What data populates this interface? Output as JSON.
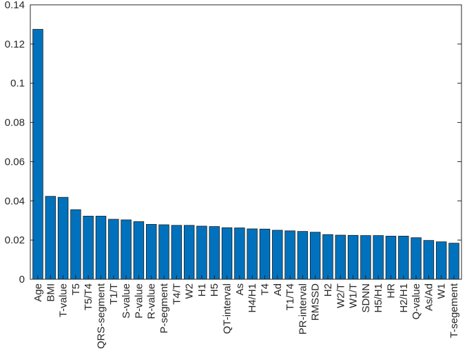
{
  "chart_data": {
    "type": "bar",
    "title": "",
    "xlabel": "",
    "ylabel": "",
    "ylim": [
      0,
      0.14
    ],
    "yticks": [
      0,
      0.02,
      0.04,
      0.06,
      0.08,
      0.1,
      0.12,
      0.14
    ],
    "ytick_labels": [
      "0",
      "0.02",
      "0.04",
      "0.06",
      "0.08",
      "0.1",
      "0.12",
      "0.14"
    ],
    "grid": false,
    "bar_color": "#0072BD",
    "categories": [
      "Age",
      "BMI",
      "T-value",
      "T5",
      "T5/T4",
      "QRS-segment",
      "T1/T",
      "S-value",
      "P-value",
      "R-value",
      "P-segment",
      "T4/T",
      "W2",
      "H1",
      "H5",
      "QT-interval",
      "As",
      "H4/H1",
      "T4",
      "Ad",
      "T1/T4",
      "PR-interval",
      "RMSSD",
      "H2",
      "W2/T",
      "W1/T",
      "SDNN",
      "H5/H1",
      "HR",
      "H2/H1",
      "Q-value",
      "As/Ad",
      "W1",
      "T-segement"
    ],
    "values": [
      0.1275,
      0.0423,
      0.0418,
      0.0355,
      0.0322,
      0.0322,
      0.0306,
      0.0303,
      0.0294,
      0.028,
      0.0278,
      0.0275,
      0.0275,
      0.0271,
      0.0269,
      0.0263,
      0.0262,
      0.0257,
      0.0256,
      0.025,
      0.0247,
      0.0244,
      0.024,
      0.0228,
      0.0225,
      0.0224,
      0.0223,
      0.0223,
      0.022,
      0.022,
      0.0212,
      0.0198,
      0.0191,
      0.0184
    ]
  }
}
